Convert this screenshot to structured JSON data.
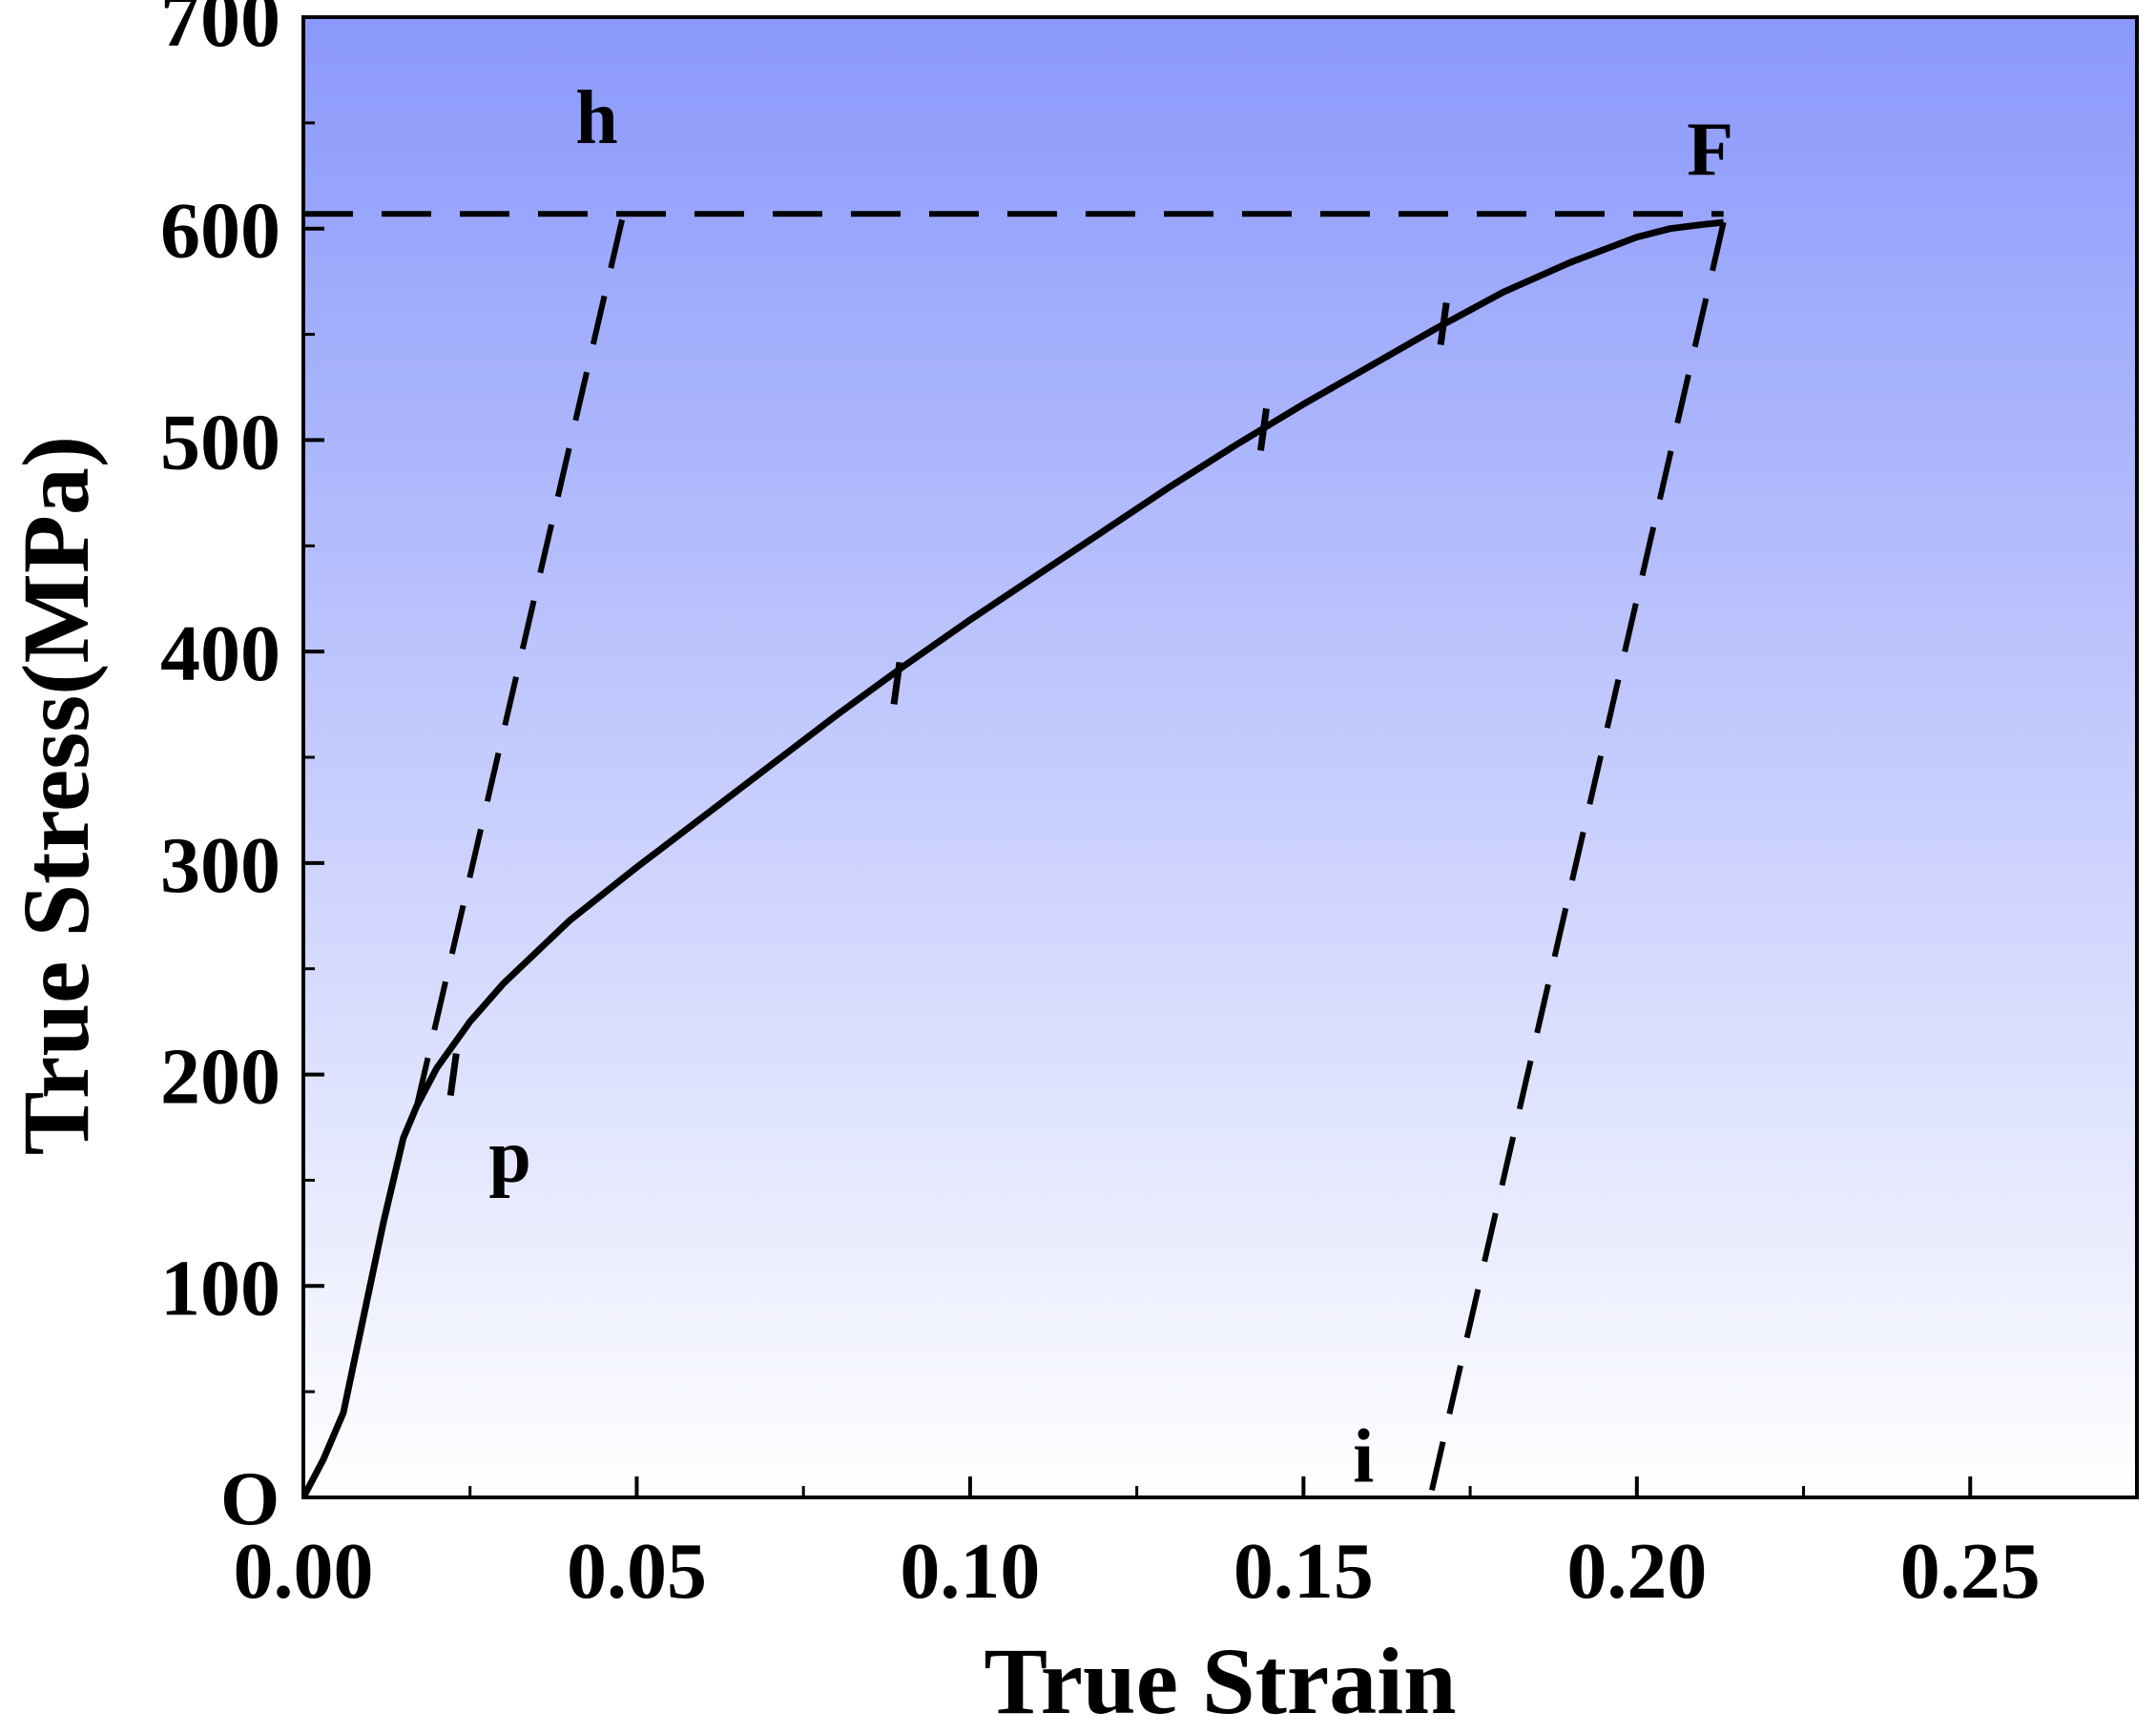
{
  "chart_data": {
    "type": "line",
    "title": "",
    "xlabel": "True Strain",
    "ylabel": "True Stress(MPa)",
    "xlim": [
      0.0,
      0.275
    ],
    "ylim": [
      0,
      700
    ],
    "xticks": [
      "0.00",
      "0.05",
      "0.10",
      "0.15",
      "0.20",
      "0.25"
    ],
    "xtick_values": [
      0.0,
      0.05,
      0.1,
      0.15,
      0.2,
      0.25
    ],
    "yticks": [
      "700",
      "600",
      "500",
      "400",
      "300",
      "200",
      "100",
      "0"
    ],
    "ytick_values": [
      700,
      600,
      500,
      400,
      300,
      200,
      100,
      0
    ],
    "background_gradient": [
      "#8a98fb",
      "#ffffff"
    ],
    "series": [
      {
        "style": "solid",
        "x": [
          0.0,
          0.003,
          0.006,
          0.009,
          0.012,
          0.015,
          0.017,
          0.02,
          0.025,
          0.03,
          0.04,
          0.05,
          0.06,
          0.07,
          0.08,
          0.09,
          0.1,
          0.11,
          0.12,
          0.13,
          0.14,
          0.15,
          0.16,
          0.17,
          0.18,
          0.19,
          0.2,
          0.205,
          0.21,
          0.213
        ],
        "y": [
          0,
          18,
          40,
          85,
          130,
          170,
          185,
          203,
          225,
          243,
          273,
          298,
          322,
          346,
          370,
          393,
          415,
          436,
          457,
          478,
          498,
          517,
          535,
          553,
          570,
          584,
          596,
          600,
          602,
          603
        ]
      },
      {
        "style": "dashed",
        "x": [
          0.017,
          0.048
        ],
        "y": [
          185,
          607
        ]
      },
      {
        "style": "dashed",
        "x": [
          0.213,
          0.169
        ],
        "y": [
          603,
          0
        ]
      },
      {
        "style": "dashed",
        "x": [
          0.0,
          0.213
        ],
        "y": [
          607,
          607
        ]
      }
    ],
    "unloading_marks": [
      {
        "x": 0.0225,
        "y": 200
      },
      {
        "x": 0.089,
        "y": 385
      },
      {
        "x": 0.144,
        "y": 505
      },
      {
        "x": 0.171,
        "y": 555
      }
    ],
    "annotations": [
      {
        "text": "O",
        "x": -0.008,
        "y": 0
      },
      {
        "text": "p",
        "x": 0.031,
        "y": 162
      },
      {
        "text": "h",
        "x": 0.044,
        "y": 653
      },
      {
        "text": "F",
        "x": 0.211,
        "y": 638
      },
      {
        "text": "i",
        "x": 0.159,
        "y": 20
      }
    ],
    "grid": false,
    "legend": "none"
  }
}
